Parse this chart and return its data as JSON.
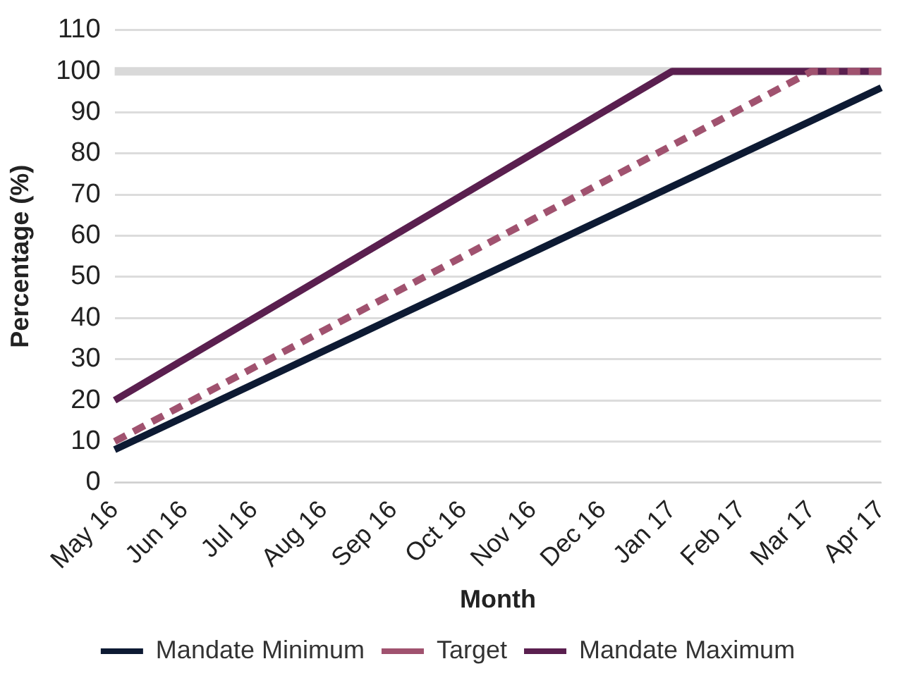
{
  "chart_data": {
    "type": "line",
    "xlabel": "Month",
    "ylabel": "Percentage (%)",
    "categories": [
      "May 16",
      "Jun 16",
      "Jul 16",
      "Aug 16",
      "Sep 16",
      "Oct 16",
      "Nov 16",
      "Dec 16",
      "Jan 17",
      "Feb 17",
      "Mar 17",
      "Apr 17"
    ],
    "series": [
      {
        "name": "Mandate Minimum",
        "color": "#0d1a33",
        "line_style": "solid",
        "values": [
          8,
          16,
          24,
          32,
          40,
          48,
          56,
          64,
          72,
          80,
          88,
          96
        ]
      },
      {
        "name": "Target",
        "color": "#a0526f",
        "line_style": "dashed",
        "values": [
          10,
          19,
          28,
          37,
          46,
          55,
          64,
          73,
          82,
          91,
          100,
          100
        ]
      },
      {
        "name": "Mandate Maximum",
        "color": "#5a1f4f",
        "line_style": "solid",
        "values": [
          20,
          30,
          40,
          50,
          60,
          70,
          80,
          90,
          100,
          100,
          100,
          100
        ]
      }
    ],
    "ylim": [
      0,
      110
    ],
    "yticks": [
      0,
      10,
      20,
      30,
      40,
      50,
      60,
      70,
      80,
      90,
      100,
      110
    ],
    "ref_lines": [
      {
        "axis": "y",
        "value": 100,
        "color": "#d9d9d9"
      }
    ],
    "grid": "y",
    "legend": "bottom",
    "marker": "none"
  }
}
